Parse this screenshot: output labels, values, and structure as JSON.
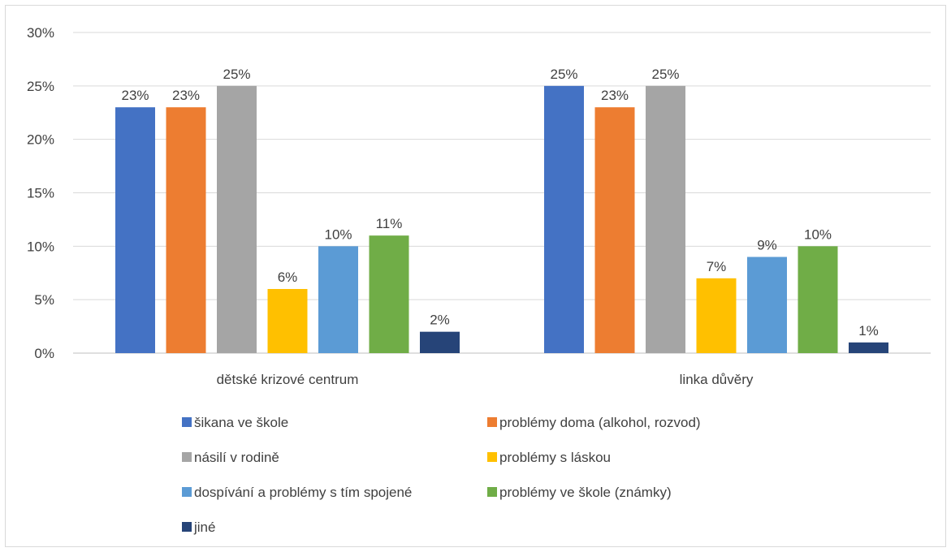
{
  "chart_data": {
    "type": "bar",
    "title": "",
    "xlabel": "",
    "ylabel": "",
    "ylim": [
      0,
      30
    ],
    "y_ticks": [
      0,
      5,
      10,
      15,
      20,
      25,
      30
    ],
    "y_tick_format": "percent",
    "grid": true,
    "legend_position": "bottom",
    "categories": [
      "dětské krizové centrum",
      "linka důvěry"
    ],
    "series": [
      {
        "name": "šikana ve škole",
        "color": "#4472C4",
        "values": [
          23,
          25
        ]
      },
      {
        "name": "problémy doma (alkohol, rozvod)",
        "color": "#ED7D31",
        "values": [
          23,
          23
        ]
      },
      {
        "name": "násilí v rodině",
        "color": "#A5A5A5",
        "values": [
          25,
          25
        ]
      },
      {
        "name": "problémy s láskou",
        "color": "#FFC000",
        "values": [
          6,
          7
        ]
      },
      {
        "name": "dospívání a problémy s tím spojené",
        "color": "#5B9BD5",
        "values": [
          10,
          9
        ]
      },
      {
        "name": "problémy ve škole (známky)",
        "color": "#70AD47",
        "values": [
          11,
          10
        ]
      },
      {
        "name": "jiné",
        "color": "#264478",
        "values": [
          2,
          1
        ]
      }
    ],
    "data_labels": [
      [
        "23%",
        "25%"
      ],
      [
        "23%",
        "23%"
      ],
      [
        "25%",
        "25%"
      ],
      [
        "6%",
        "7%"
      ],
      [
        "10%",
        "9%"
      ],
      [
        "11%",
        "10%"
      ],
      [
        "2%",
        "1%"
      ]
    ]
  }
}
